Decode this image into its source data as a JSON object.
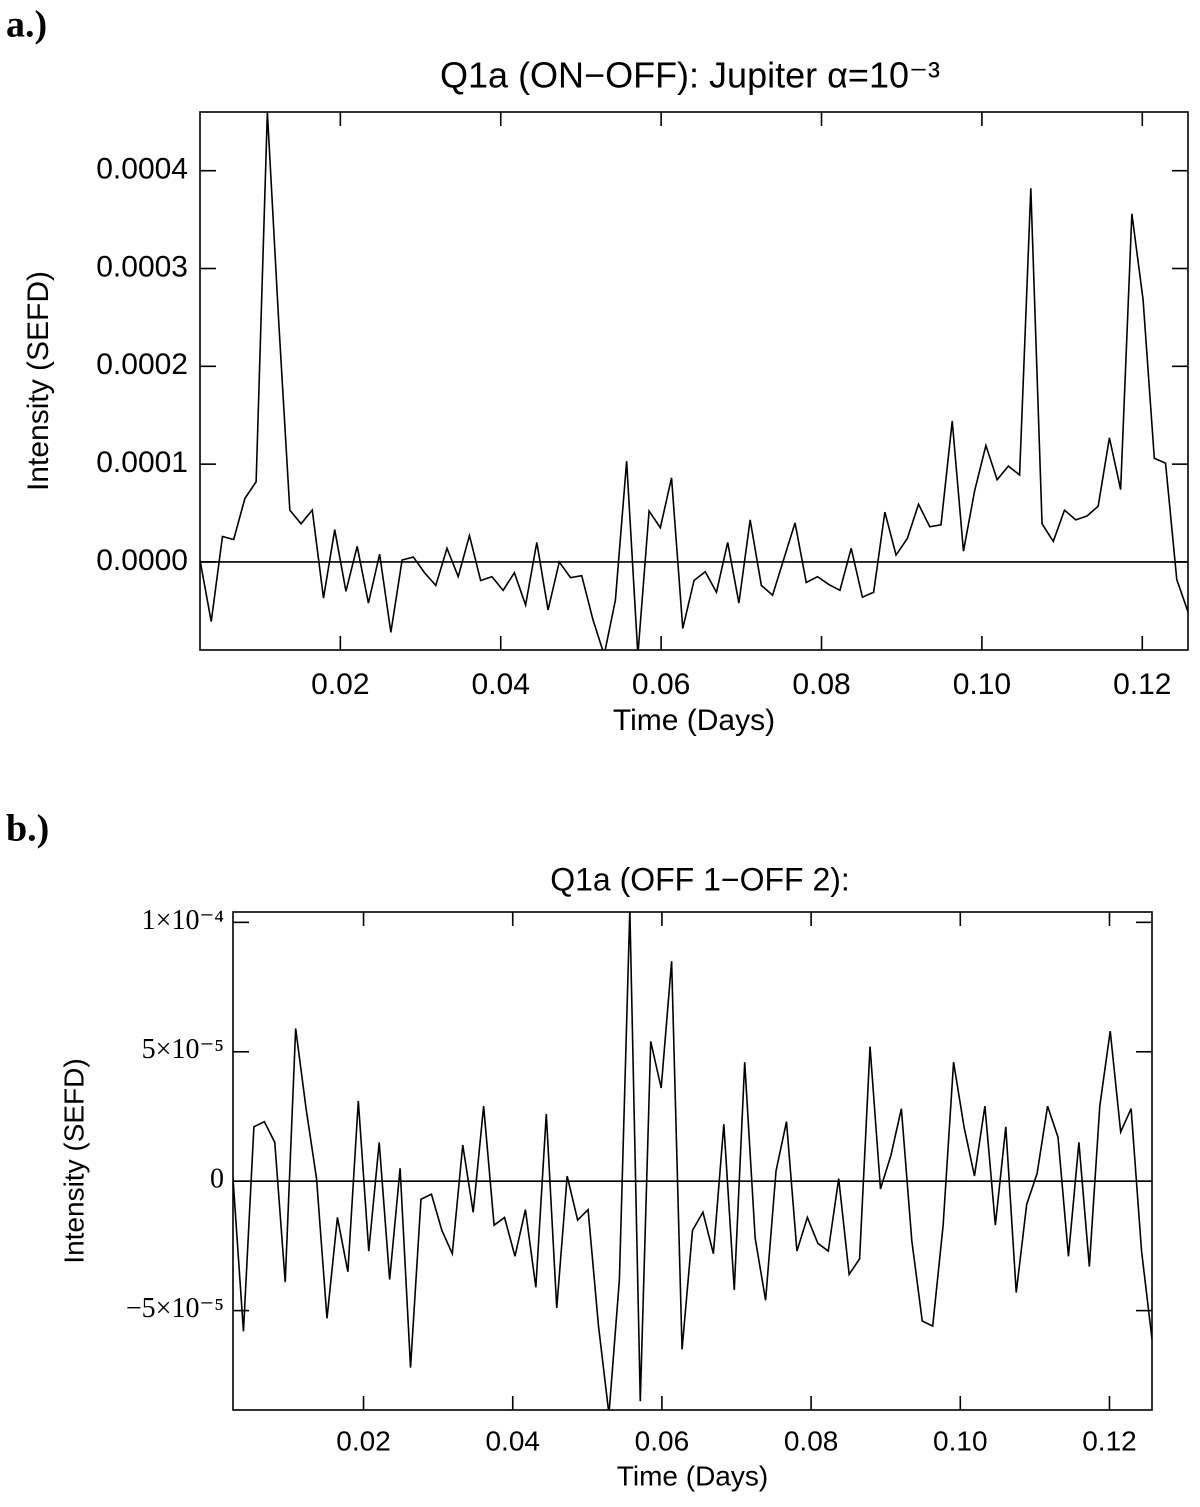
{
  "chart_data": [
    {
      "type": "line",
      "panel_label": "a.)",
      "title": "Q1a (ON−OFF): Jupiter α=10⁻³",
      "xlabel": "Time (Days)",
      "ylabel": "Intensity (SEFD)",
      "color": "#000000",
      "x": [
        0.0025,
        0.0039,
        0.0053,
        0.0067,
        0.0081,
        0.0095,
        0.0109,
        0.0123,
        0.0137,
        0.0151,
        0.0165,
        0.0179,
        0.0193,
        0.0207,
        0.0221,
        0.0235,
        0.0249,
        0.0263,
        0.0277,
        0.0291,
        0.0305,
        0.0319,
        0.0333,
        0.0347,
        0.0361,
        0.0375,
        0.0389,
        0.0403,
        0.0417,
        0.0431,
        0.0445,
        0.0459,
        0.0473,
        0.0487,
        0.0501,
        0.0515,
        0.0529,
        0.0543,
        0.0557,
        0.0571,
        0.0585,
        0.0599,
        0.0613,
        0.0627,
        0.0641,
        0.0655,
        0.0669,
        0.0683,
        0.0697,
        0.0711,
        0.0725,
        0.0739,
        0.0753,
        0.0767,
        0.0781,
        0.0795,
        0.0809,
        0.0823,
        0.0837,
        0.0851,
        0.0865,
        0.0879,
        0.0893,
        0.0907,
        0.0921,
        0.0935,
        0.0949,
        0.0963,
        0.0977,
        0.0991,
        0.1005,
        0.1019,
        0.1033,
        0.1047,
        0.1061,
        0.1075,
        0.1089,
        0.1103,
        0.1117,
        0.1131,
        0.1145,
        0.1159,
        0.1173,
        0.1187,
        0.1201,
        0.1215,
        0.1229,
        0.1243,
        0.1257
      ],
      "values": [
        2e-06,
        -6.1e-05,
        2.6e-05,
        2.3e-05,
        6.5e-05,
        8.2e-05,
        0.00046,
        0.000248,
        5.3e-05,
        3.9e-05,
        5.3e-05,
        -3.7e-05,
        3.3e-05,
        -3e-05,
        1.6e-05,
        -4.2e-05,
        8e-06,
        -7.2e-05,
        2e-06,
        5e-06,
        -1.1e-05,
        -2.4e-05,
        1.4e-05,
        -1.5e-05,
        2.7e-05,
        -1.9e-05,
        -1.5e-05,
        -2.9e-05,
        -1.1e-05,
        -4.4e-05,
        2e-05,
        -4.9e-05,
        0,
        -1.6e-05,
        -1.4e-05,
        -5.9e-05,
        -9.5e-05,
        -3.9e-05,
        0.000103,
        -9.5e-05,
        5.2e-05,
        3.5e-05,
        8.6e-05,
        -6.8e-05,
        -1.9e-05,
        -1e-05,
        -3.1e-05,
        2e-05,
        -4.2e-05,
        4.3e-05,
        -2.4e-05,
        -3.4e-05,
        3e-06,
        4e-05,
        -2.1e-05,
        -1.5e-05,
        -2.3e-05,
        -2.9e-05,
        1.4e-05,
        -3.6e-05,
        -3.1e-05,
        5.1e-05,
        7e-06,
        2.4e-05,
        5.9e-05,
        3.6e-05,
        3.8e-05,
        0.000144,
        1.1e-05,
        7.3e-05,
        0.000119,
        8.4e-05,
        9.8e-05,
        8.9e-05,
        0.000382,
        3.9e-05,
        2.1e-05,
        5.3e-05,
        4.3e-05,
        4.7e-05,
        5.7e-05,
        0.000127,
        7.4e-05,
        0.000356,
        0.000268,
        0.000106,
        0.000101,
        -1.8e-05,
        -5.1e-05
      ],
      "xlim": [
        0.0025,
        0.1257
      ],
      "ylim": [
        -9e-05,
        0.00046
      ],
      "xticks": [
        0.02,
        0.04,
        0.06,
        0.08,
        {
          "value": 0.1,
          "label": "0.10"
        },
        0.12
      ],
      "yticks": [
        {
          "value": 0,
          "label": "0.0000"
        },
        0.0001,
        0.0002,
        0.0003,
        0.0004
      ],
      "hline": 0
    },
    {
      "type": "line",
      "panel_label": "b.)",
      "title": "Q1a (OFF 1−OFF 2):",
      "xlabel": "Time (Days)",
      "ylabel": "Intensity (SEFD)",
      "color": "#000000",
      "x": [
        0.0025,
        0.0039,
        0.0053,
        0.0067,
        0.0081,
        0.0095,
        0.0109,
        0.0123,
        0.0137,
        0.0151,
        0.0165,
        0.0179,
        0.0193,
        0.0207,
        0.0221,
        0.0235,
        0.0249,
        0.0263,
        0.0277,
        0.0291,
        0.0305,
        0.0319,
        0.0333,
        0.0347,
        0.0361,
        0.0375,
        0.0389,
        0.0403,
        0.0417,
        0.0431,
        0.0445,
        0.0459,
        0.0473,
        0.0487,
        0.0501,
        0.0515,
        0.0529,
        0.0543,
        0.0557,
        0.0571,
        0.0585,
        0.0599,
        0.0613,
        0.0627,
        0.0641,
        0.0655,
        0.0669,
        0.0683,
        0.0697,
        0.0711,
        0.0725,
        0.0739,
        0.0753,
        0.0767,
        0.0781,
        0.0795,
        0.0809,
        0.0823,
        0.0837,
        0.0851,
        0.0865,
        0.0879,
        0.0893,
        0.0907,
        0.0921,
        0.0935,
        0.0949,
        0.0963,
        0.0977,
        0.0991,
        0.1005,
        0.1019,
        0.1033,
        0.1047,
        0.1061,
        0.1075,
        0.1089,
        0.1103,
        0.1117,
        0.1131,
        0.1145,
        0.1159,
        0.1173,
        0.1187,
        0.1201,
        0.1215,
        0.1229,
        0.1243,
        0.1257
      ],
      "values": [
        1e-06,
        -5.8e-05,
        2.1e-05,
        2.3e-05,
        1.5e-05,
        -3.9e-05,
        5.9e-05,
        2.8e-05,
        1e-06,
        -5.3e-05,
        -1.4e-05,
        -3.5e-05,
        3.1e-05,
        -2.7e-05,
        1.5e-05,
        -3.8e-05,
        5e-06,
        -7.2e-05,
        -7e-06,
        -5e-06,
        -1.9e-05,
        -2.8e-05,
        1.4e-05,
        -1.2e-05,
        2.9e-05,
        -1.7e-05,
        -1.4e-05,
        -2.9e-05,
        -1.1e-05,
        -4.1e-05,
        2.6e-05,
        -4.9e-05,
        2e-06,
        -1.5e-05,
        -1.1e-05,
        -5.6e-05,
        -9e-05,
        -3.8e-05,
        0.000105,
        -8.5e-05,
        5.4e-05,
        3.6e-05,
        8.5e-05,
        -6.5e-05,
        -1.9e-05,
        -1.2e-05,
        -2.8e-05,
        2.2e-05,
        -4.2e-05,
        4.6e-05,
        -2.2e-05,
        -4.6e-05,
        4e-06,
        2.3e-05,
        -2.7e-05,
        -1.4e-05,
        -2.4e-05,
        -2.7e-05,
        1e-06,
        -3.6e-05,
        -3e-05,
        5.2e-05,
        -3e-06,
        1e-05,
        2.8e-05,
        -2.3e-05,
        -5.4e-05,
        -5.6e-05,
        -1.7e-05,
        4.6e-05,
        2.1e-05,
        2e-06,
        2.9e-05,
        -1.7e-05,
        2.1e-05,
        -4.3e-05,
        -9e-06,
        3e-06,
        2.9e-05,
        1.7e-05,
        -2.9e-05,
        1.5e-05,
        -3.3e-05,
        2.9e-05,
        5.8e-05,
        1.9e-05,
        2.8e-05,
        -2.7e-05,
        -6.1e-05
      ],
      "xlim": [
        0.0025,
        0.1257
      ],
      "ylim": [
        -8.84e-05,
        0.000104
      ],
      "xticks": [
        0.02,
        0.04,
        0.06,
        0.08,
        {
          "value": 0.1,
          "label": "0.10"
        },
        0.12
      ],
      "yticks": [
        {
          "value": -5e-05,
          "label": "−5×10⁻⁵"
        },
        0,
        {
          "value": 5e-05,
          "label": "5×10⁻⁵"
        },
        {
          "value": 0.0001,
          "label": "1×10⁻⁴"
        }
      ],
      "hline": 0
    }
  ]
}
